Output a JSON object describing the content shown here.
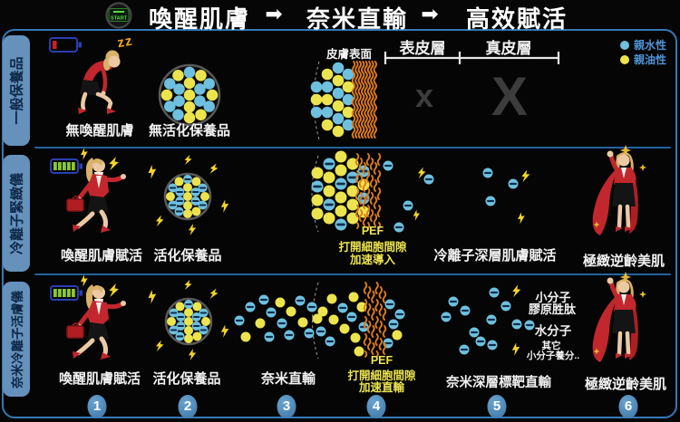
{
  "header": {
    "device_label": "START",
    "steps": [
      "喚醒肌膚",
      "奈米直輸",
      "高效賦活"
    ],
    "arrow": "➡"
  },
  "sidebar": {
    "tabs": [
      "一般保養品",
      "冷離子緊緻儀",
      "奈米冷離子活膚儀"
    ]
  },
  "legend": {
    "hydrophilic": {
      "label": "親水性",
      "color": "#6fc0df"
    },
    "lipophilic": {
      "label": "親油性",
      "color": "#ece44e"
    }
  },
  "skin_map": {
    "surface": "皮膚表面",
    "epidermis": "表皮層",
    "dermis": "真皮層"
  },
  "row1": {
    "sleep": "zz",
    "label_person": "無喚醒肌膚",
    "label_product": "無活化保養品",
    "block_epidermis": "x",
    "block_dermis": "X"
  },
  "row2": {
    "label_person": "喚醒肌膚賦活",
    "label_product": "活化保養品",
    "pef": [
      "PEF",
      "打開細胞間隙",
      "加速導入"
    ],
    "label_deep": "冷離子深層肌膚賦活",
    "label_result": "極緻逆齡美肌"
  },
  "row3": {
    "label_person": "喚醒肌膚賦活",
    "label_product": "活化保養品",
    "label_nano": "奈米直輸",
    "pef": [
      "PEF",
      "打開細胞間隙",
      "加速直輸"
    ],
    "label_deep": "奈米深層標靶直輸",
    "annotations": {
      "a1": "小分子",
      "a2": "膠原胜肽",
      "a3": "水分子",
      "a4": "其它",
      "a5": "小分子養分.."
    },
    "label_result": "極緻逆齡美肌"
  },
  "steps_footer": {
    "numbers": [
      "1",
      "2",
      "3",
      "4",
      "5",
      "6"
    ]
  },
  "colors": {
    "hydrophilic_dot": "#6fc0df",
    "lipophilic_dot": "#ece44e",
    "lightning": "#f2d42a",
    "skin_wave": "#e07b1a",
    "panel_border": "#3579b5",
    "tab_fill": "#6591ba",
    "number_circle": "#4e88b5",
    "pef_text": "#ece44e",
    "blocked_x": "#3c3c3c",
    "battery_low": "#d02020",
    "battery_full": "#88c832"
  }
}
